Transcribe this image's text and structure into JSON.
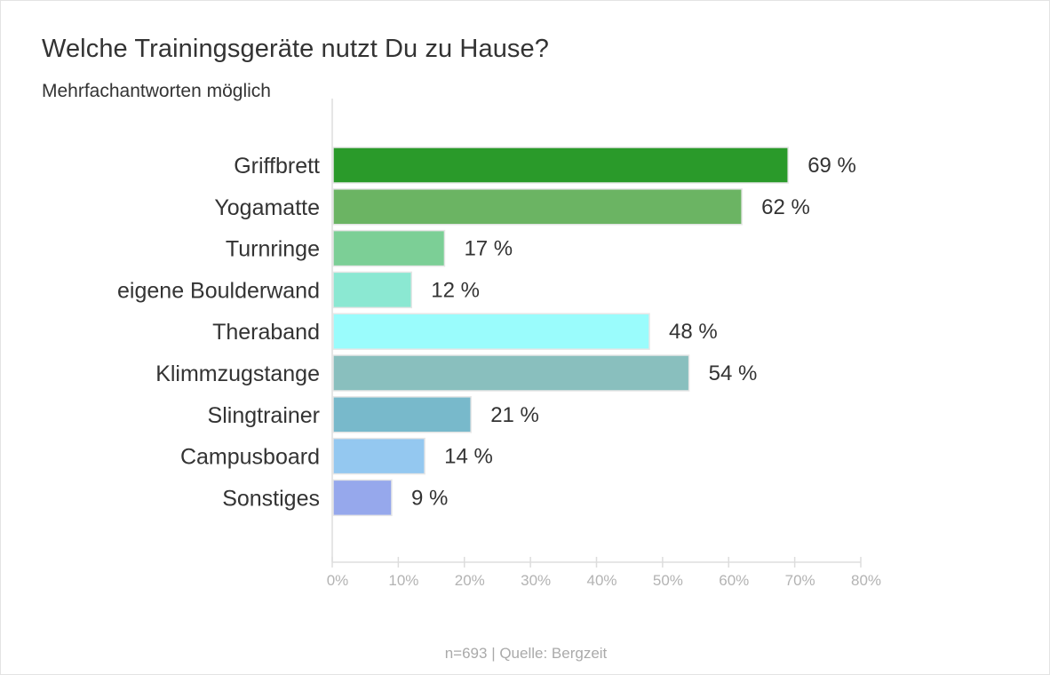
{
  "title": "Welche Trainingsgeräte nutzt Du zu Hause?",
  "subtitle": "Mehrfachantworten möglich",
  "source": "n=693 | Quelle: Bergzeit",
  "chart_data": {
    "type": "bar",
    "orientation": "horizontal",
    "title": "Welche Trainingsgeräte nutzt Du zu Hause?",
    "subtitle": "Mehrfachantworten möglich",
    "categories": [
      "Griffbrett",
      "Yogamatte",
      "Turnringe",
      "eigene Boulderwand",
      "Theraband",
      "Klimmzugstange",
      "Slingtrainer",
      "Campusboard",
      "Sonstiges"
    ],
    "values": [
      69,
      62,
      17,
      12,
      48,
      54,
      21,
      14,
      9
    ],
    "value_labels": [
      "69 %",
      "62 %",
      "17 %",
      "12 %",
      "48 %",
      "54 %",
      "21 %",
      "14 %",
      "9 %"
    ],
    "colors": [
      "#2a9a2a",
      "#6bb463",
      "#7ccf96",
      "#8be8d2",
      "#9afcfc",
      "#89bfbe",
      "#78b9cb",
      "#94c8f0",
      "#96a8ec"
    ],
    "xlim": [
      0,
      80
    ],
    "ticks": [
      0,
      10,
      20,
      30,
      40,
      50,
      60,
      70,
      80
    ],
    "tick_labels": [
      "0%",
      "10%",
      "20%",
      "30%",
      "40%",
      "50%",
      "60%",
      "70%",
      "80%"
    ],
    "xlabel": "",
    "ylabel": "",
    "grid": false
  }
}
